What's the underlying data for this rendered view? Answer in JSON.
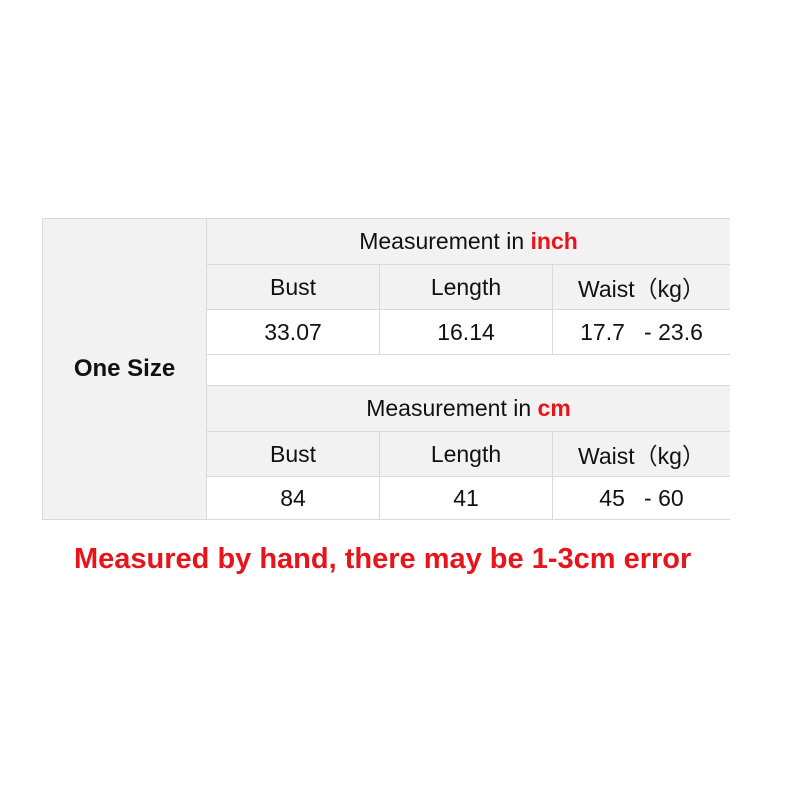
{
  "size_label": "One Size",
  "inch": {
    "title_prefix": "Measurement in ",
    "unit": "inch",
    "headers": [
      "Bust",
      "Length",
      "Waist（kg）"
    ],
    "values": [
      "33.07",
      "16.14",
      "17.7   - 23.6"
    ]
  },
  "cm": {
    "title_prefix": "Measurement in ",
    "unit": "cm",
    "headers": [
      "Bust",
      "Length",
      "Waist（kg）"
    ],
    "values": [
      "84",
      "41",
      "45   - 60"
    ]
  },
  "note": "Measured by hand, there may be 1-3cm error",
  "colors": {
    "accent_red": "#e8141b",
    "header_gray": "#f2f2f2",
    "border": "#d9d9d9"
  }
}
